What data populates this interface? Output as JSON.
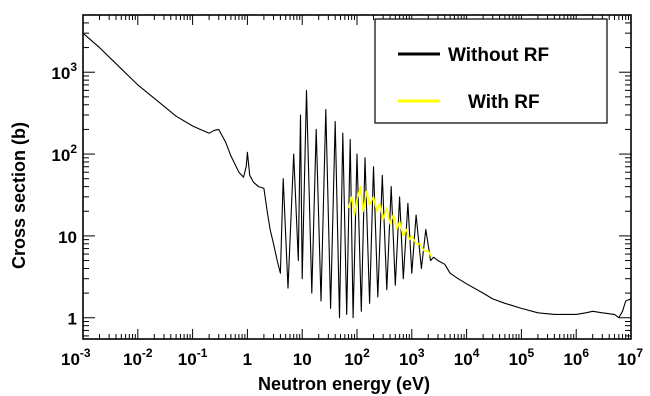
{
  "chart_data": {
    "type": "line",
    "title": "",
    "xlabel": "Neutron energy  (eV)",
    "ylabel": "Cross section  (b)",
    "xscale": "log",
    "yscale": "log",
    "xlim": [
      0.001,
      10000000
    ],
    "ylim": [
      0.55,
      5000
    ],
    "x_tick_labels": [
      {
        "base": "10",
        "exp": "-3"
      },
      {
        "base": "10",
        "exp": "-2"
      },
      {
        "base": "10",
        "exp": "-1"
      },
      {
        "base": "1",
        "exp": ""
      },
      {
        "base": "10",
        "exp": ""
      },
      {
        "base": "10",
        "exp": "2"
      },
      {
        "base": "10",
        "exp": "3"
      },
      {
        "base": "10",
        "exp": "4"
      },
      {
        "base": "10",
        "exp": "5"
      },
      {
        "base": "10",
        "exp": "6"
      },
      {
        "base": "10",
        "exp": "7"
      }
    ],
    "y_tick_labels": [
      {
        "base": "1",
        "exp": ""
      },
      {
        "base": "10",
        "exp": ""
      },
      {
        "base": "10",
        "exp": "2"
      },
      {
        "base": "10",
        "exp": "3"
      }
    ],
    "legend_position": "top-right",
    "series": [
      {
        "name": "Without RF",
        "color": "#000000",
        "x": [
          0.001,
          0.002,
          0.005,
          0.01,
          0.02,
          0.05,
          0.1,
          0.15,
          0.2,
          0.25,
          0.3,
          0.4,
          0.5,
          0.7,
          0.85,
          0.95,
          1.0,
          1.1,
          1.3,
          1.6,
          2.0,
          2.3,
          2.6,
          3.0,
          3.5,
          4.0,
          4.5,
          5.5,
          7,
          8.5,
          9.3,
          10,
          12,
          15,
          18,
          22,
          27,
          33,
          40,
          48,
          55,
          65,
          75,
          85,
          100,
          120,
          140,
          170,
          200,
          240,
          290,
          350,
          420,
          500,
          600,
          700,
          850,
          1000,
          1200,
          1500,
          1800,
          2200,
          2500,
          3000,
          4000,
          5000,
          7000,
          10000,
          20000,
          30000,
          50000,
          100000,
          200000,
          400000,
          700000,
          1000000,
          1500000,
          2000000,
          3000000,
          5000000,
          6000000,
          7000000,
          8000000,
          10000000
        ],
        "y": [
          3000,
          2000,
          1100,
          700,
          480,
          290,
          220,
          195,
          180,
          195,
          200,
          140,
          95,
          60,
          52,
          70,
          105,
          55,
          45,
          40,
          38,
          20,
          12,
          8,
          5,
          3.5,
          50,
          2.3,
          100,
          5,
          300,
          3,
          600,
          2,
          200,
          1.6,
          350,
          1.3,
          250,
          1.0,
          180,
          1.1,
          150,
          1.0,
          100,
          1.2,
          90,
          1.5,
          70,
          1.8,
          55,
          2.2,
          40,
          2.5,
          30,
          3.0,
          25,
          3.5,
          18,
          4.0,
          12,
          5.0,
          5.5,
          5.0,
          4.5,
          3.5,
          3.0,
          2.6,
          2.0,
          1.7,
          1.5,
          1.3,
          1.15,
          1.1,
          1.1,
          1.1,
          1.15,
          1.2,
          1.15,
          1.1,
          1.0,
          1.2,
          1.6,
          1.7
        ]
      },
      {
        "name": "With RF",
        "color": "#ffff00",
        "x": [
          70,
          80,
          90,
          100,
          115,
          130,
          150,
          170,
          200,
          230,
          260,
          300,
          350,
          400,
          460,
          530,
          600,
          700,
          800,
          900,
          1000,
          1200,
          1400,
          1700,
          2000,
          2300
        ],
        "y": [
          22,
          30,
          18,
          28,
          40,
          20,
          35,
          24,
          30,
          20,
          25,
          16,
          22,
          14,
          18,
          12,
          15,
          10,
          12,
          9,
          10,
          8,
          8,
          6.5,
          6.5,
          5.5
        ]
      }
    ]
  }
}
